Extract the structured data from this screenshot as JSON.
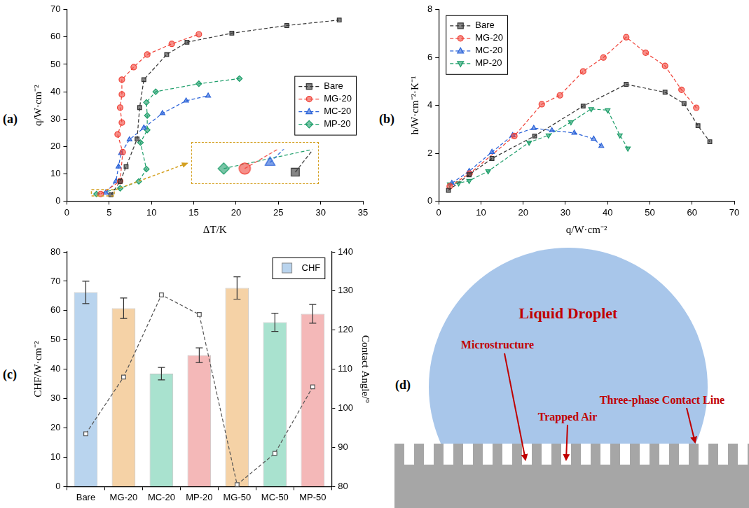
{
  "chart_data": [
    {
      "panel_label": "(a)",
      "type": "line",
      "x_label": "ΔT/K",
      "y_label": "q/W·cm⁻²",
      "xlim": [
        0,
        35
      ],
      "xticks": [
        0,
        5,
        10,
        15,
        20,
        25,
        30,
        35
      ],
      "ylim": [
        0,
        70
      ],
      "yticks": [
        0,
        10,
        20,
        30,
        40,
        50,
        60,
        70
      ],
      "grid": false,
      "legend": "right",
      "inset": {
        "xlim": [
          2.9,
          5.6
        ],
        "ylim": [
          1.9,
          4.2
        ]
      },
      "series": [
        {
          "name": "Bare",
          "color": "#333333",
          "marker": "square",
          "line_style": "dashed",
          "x": [
            5.2,
            6.3,
            7.0,
            8.3,
            8.6,
            9.1,
            11.8,
            14.2,
            19.5,
            26.0,
            32.2
          ],
          "values": [
            2.3,
            7.2,
            12.6,
            22.7,
            34.2,
            44.4,
            53.6,
            58.1,
            61.4,
            64.2,
            66.2
          ]
        },
        {
          "name": "MG-20",
          "color": "#f0443a",
          "marker": "circle",
          "line_style": "dashed",
          "x": [
            4.0,
            6.3,
            6.6,
            6.0,
            6.5,
            6.3,
            6.5,
            6.5,
            7.9,
            9.5,
            12.4,
            15.6
          ],
          "values": [
            2.6,
            7.3,
            17.9,
            24.4,
            28.7,
            34.2,
            39.0,
            44.4,
            49.0,
            53.6,
            57.5,
            61.0
          ]
        },
        {
          "name": "MC-20",
          "color": "#2a62d8",
          "marker": "triangle",
          "line_style": "dashed",
          "x": [
            4.6,
            5.8,
            6.1,
            6.4,
            7.4,
            9.1,
            11.3,
            14.1,
            16.7
          ],
          "values": [
            3.1,
            7.2,
            12.6,
            17.5,
            22.5,
            26.8,
            32.1,
            36.7,
            38.5
          ]
        },
        {
          "name": "MP-20",
          "color": "#1e9e6a",
          "marker": "diamond",
          "line_style": "dashed",
          "x": [
            3.5,
            6.3,
            8.5,
            9.4,
            8.7,
            9.5,
            9.5,
            9.4,
            10.5,
            15.6,
            20.4
          ],
          "values": [
            2.6,
            4.7,
            7.2,
            11.7,
            21.4,
            26.0,
            31.3,
            36.1,
            40.0,
            42.9,
            44.8
          ]
        }
      ]
    },
    {
      "panel_label": "(b)",
      "type": "line",
      "x_label": "q/W·cm⁻²",
      "y_label": "h/W·cm⁻²·K⁻¹",
      "xlim": [
        0,
        70
      ],
      "xticks": [
        0,
        10,
        20,
        30,
        40,
        50,
        60,
        70
      ],
      "ylim": [
        0,
        8
      ],
      "yticks": [
        0,
        2,
        4,
        6,
        8
      ],
      "grid": false,
      "legend": "upper left",
      "series": [
        {
          "name": "Bare",
          "color": "#333333",
          "marker": "square",
          "line_style": "dashed",
          "x": [
            2.3,
            7.2,
            12.6,
            22.7,
            34.2,
            44.4,
            53.6,
            58.1,
            61.4,
            64.2
          ],
          "values": [
            0.45,
            1.1,
            1.78,
            2.72,
            3.97,
            4.88,
            4.55,
            4.08,
            3.15,
            2.48
          ]
        },
        {
          "name": "MG-20",
          "color": "#f0443a",
          "marker": "circle",
          "line_style": "dashed",
          "x": [
            2.6,
            7.3,
            17.9,
            24.4,
            28.7,
            34.2,
            39.0,
            44.4,
            49.0,
            53.6,
            57.5,
            61.0
          ],
          "values": [
            0.62,
            1.15,
            2.72,
            4.05,
            4.42,
            5.42,
            6.0,
            6.85,
            6.2,
            5.65,
            4.65,
            3.9
          ]
        },
        {
          "name": "MC-20",
          "color": "#2a62d8",
          "marker": "triangle",
          "line_style": "dashed",
          "x": [
            3.1,
            7.2,
            12.6,
            17.5,
            22.5,
            26.8,
            32.1,
            36.7,
            38.5
          ],
          "values": [
            0.75,
            1.25,
            2.05,
            2.75,
            3.05,
            2.95,
            2.85,
            2.6,
            2.3
          ]
        },
        {
          "name": "MP-20",
          "color": "#1e9e6a",
          "marker": "triangle-down",
          "line_style": "dashed",
          "x": [
            2.6,
            4.7,
            7.2,
            11.7,
            21.4,
            26.0,
            31.3,
            36.1,
            40.0,
            42.9,
            44.8
          ],
          "values": [
            0.7,
            0.75,
            0.85,
            1.25,
            2.45,
            2.75,
            3.3,
            3.85,
            3.8,
            2.75,
            2.2
          ]
        }
      ]
    },
    {
      "panel_label": "(c)",
      "type": "bar",
      "categories": [
        "Bare",
        "MG-20",
        "MC-20",
        "MP-20",
        "MG-50",
        "MC-50",
        "MP-50"
      ],
      "y_label": "CHF/W·cm⁻²",
      "ylim": [
        0,
        80
      ],
      "yticks": [
        0,
        10,
        20,
        30,
        40,
        50,
        60,
        70,
        80
      ],
      "y2_label": "Contact Angle/°",
      "y2lim": [
        80,
        140
      ],
      "y2ticks": [
        80,
        90,
        100,
        110,
        120,
        130,
        140
      ],
      "grid": false,
      "legend": "upper right",
      "series": [
        {
          "name": "CHF",
          "colors": [
            "#b9d4ee",
            "#f5d2a6",
            "#a9e2cf",
            "#f4b8b8",
            "#f5d2a6",
            "#a9e2cf",
            "#f4b8b8"
          ],
          "values": [
            66.2,
            60.8,
            38.5,
            44.8,
            67.7,
            56.0,
            58.9
          ],
          "errors": [
            3.8,
            3.5,
            2.1,
            2.5,
            3.8,
            3.1,
            3.2
          ]
        },
        {
          "type": "line",
          "axis": "y2",
          "color": "#555555",
          "marker": "square",
          "line_style": "dashed",
          "values": [
            93.5,
            108.0,
            129.0,
            124.0,
            80.5,
            88.5,
            105.5
          ]
        }
      ]
    }
  ],
  "diagram": {
    "panel_label": "(d)",
    "labels": {
      "droplet": "Liquid Droplet",
      "microstructure": "Microstructure",
      "trapped_air": "Trapped Air",
      "contact_line": "Three-phase Contact Line"
    }
  }
}
